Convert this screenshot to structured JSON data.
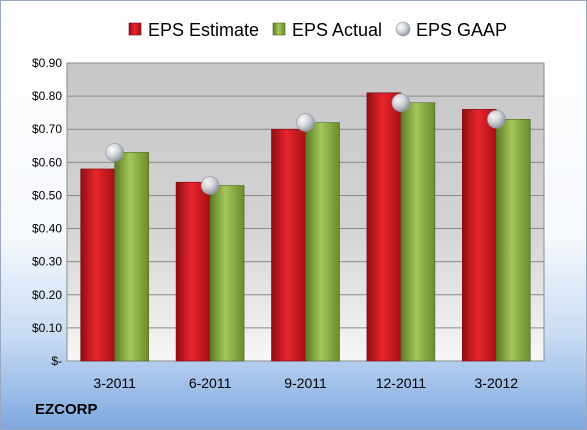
{
  "company": "EZCORP",
  "chart_data": {
    "type": "bar",
    "categories": [
      "3-2011",
      "6-2011",
      "9-2011",
      "12-2011",
      "3-2012"
    ],
    "series": [
      {
        "name": "EPS Estimate",
        "type": "bar",
        "color": "#c8141c",
        "values": [
          0.58,
          0.54,
          0.7,
          0.81,
          0.76
        ]
      },
      {
        "name": "EPS Actual",
        "type": "bar",
        "color": "#7fa03a",
        "values": [
          0.63,
          0.53,
          0.72,
          0.78,
          0.73
        ]
      },
      {
        "name": "EPS GAAP",
        "type": "scatter",
        "color": "#c0c4cc",
        "values": [
          0.63,
          0.53,
          0.72,
          0.78,
          0.73
        ]
      }
    ],
    "yticks": [
      {
        "value": 0,
        "label": "$-"
      },
      {
        "value": 0.1,
        "label": "$0.10"
      },
      {
        "value": 0.2,
        "label": "$0.20"
      },
      {
        "value": 0.3,
        "label": "$0.30"
      },
      {
        "value": 0.4,
        "label": "$0.40"
      },
      {
        "value": 0.5,
        "label": "$0.50"
      },
      {
        "value": 0.6,
        "label": "$0.60"
      },
      {
        "value": 0.7,
        "label": "$0.70"
      },
      {
        "value": 0.8,
        "label": "$0.80"
      },
      {
        "value": 0.9,
        "label": "$0.90"
      }
    ],
    "ylim": [
      0,
      0.9
    ],
    "grid": true,
    "legend_position": "top"
  }
}
